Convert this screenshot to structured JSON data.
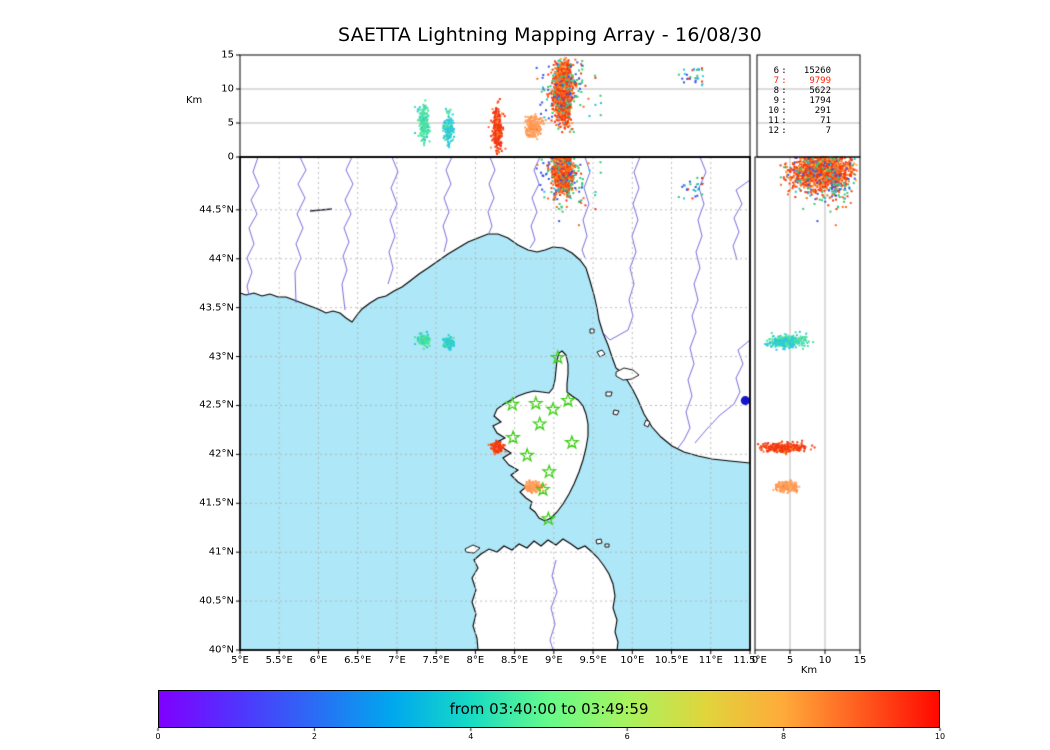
{
  "title": "SAETTA Lightning Mapping Array - 16/08/30",
  "axes": {
    "altitude_left": {
      "label": "Km",
      "tick_values": [
        0,
        5,
        10,
        15
      ],
      "range": [
        0,
        15
      ]
    },
    "altitude_bottom": {
      "label": "Km",
      "tick_values": [
        0,
        5,
        10,
        15
      ],
      "range": [
        0,
        15
      ]
    },
    "longitude": {
      "tick_labels": [
        "5°E",
        "5.5°E",
        "6°E",
        "6.5°E",
        "7°E",
        "7.5°E",
        "8°E",
        "8.5°E",
        "9°E",
        "9.5°E",
        "10°E",
        "10.5°E",
        "11°E",
        "11.5°E"
      ],
      "tick_values": [
        5,
        5.5,
        6,
        6.5,
        7,
        7.5,
        8,
        8.5,
        9,
        9.5,
        10,
        10.5,
        11,
        11.5
      ]
    },
    "latitude": {
      "tick_labels": [
        "44.5°N",
        "44°N",
        "43.5°N",
        "43°N",
        "42.5°N",
        "42°N",
        "41.5°N",
        "41°N",
        "40.5°N",
        "40°N"
      ],
      "tick_values": [
        44.5,
        44,
        43.5,
        43,
        42.5,
        42,
        41.5,
        41,
        40.5,
        40
      ]
    }
  },
  "stats_panel": {
    "rows": [
      {
        "label": "6",
        "value": "15260",
        "color": "#000000"
      },
      {
        "label": "7",
        "value": "9799",
        "color": "#ff2000"
      },
      {
        "label": "8",
        "value": "5622",
        "color": "#000000"
      },
      {
        "label": "9",
        "value": "1794",
        "color": "#000000"
      },
      {
        "label": "10",
        "value": "291",
        "color": "#000000"
      },
      {
        "label": "11",
        "value": "71",
        "color": "#000000"
      },
      {
        "label": "12",
        "value": "7",
        "color": "#000000"
      }
    ]
  },
  "colorbar": {
    "label": "from 03:40:00 to 03:49:59",
    "tick_labels": [
      "0",
      "2",
      "4",
      "6",
      "8",
      "10"
    ],
    "range": [
      0,
      10
    ],
    "stops": [
      "#8000ff",
      "#5233fd",
      "#2a6cf5",
      "#00a8ee",
      "#17dbc4",
      "#66fb8a",
      "#a8f35f",
      "#e0d53c",
      "#ffab3a",
      "#ff5b1f",
      "#ff0800"
    ]
  },
  "chart_data": {
    "type": "scatter",
    "title": "SAETTA Lightning Mapping Array - 16/08/30",
    "time_window": "from 03:40:00 to 03:49:59",
    "lon_range": [
      5,
      11.5
    ],
    "lat_range": [
      40,
      45.04
    ],
    "alt_range_km": [
      0,
      15
    ],
    "sea_color": "#aee7f7",
    "land_color": "#ffffff",
    "station_color": "#3fcf17",
    "stations": [
      {
        "lon": 9.05,
        "lat": 42.99
      },
      {
        "lon": 8.47,
        "lat": 42.51
      },
      {
        "lon": 8.77,
        "lat": 42.52
      },
      {
        "lon": 8.99,
        "lat": 42.46
      },
      {
        "lon": 9.18,
        "lat": 42.55
      },
      {
        "lon": 8.82,
        "lat": 42.31
      },
      {
        "lon": 9.23,
        "lat": 42.12
      },
      {
        "lon": 8.48,
        "lat": 42.17
      },
      {
        "lon": 8.66,
        "lat": 41.99
      },
      {
        "lon": 8.94,
        "lat": 41.82
      },
      {
        "lon": 8.86,
        "lat": 41.64
      },
      {
        "lon": 8.93,
        "lat": 41.34
      }
    ],
    "clusters": [
      {
        "name": "main-storm-north-of-corsica",
        "count": 1400,
        "lon_mean": 9.12,
        "lon_sd": 0.055,
        "lat_mean": 44.9,
        "lat_sd": 0.1,
        "alt_mean": 9.5,
        "alt_sd": 2.2,
        "alt_range": [
          3.5,
          14.6
        ],
        "colors": [
          [
            "#f4380f",
            45
          ],
          [
            "#fd6a1e",
            25
          ],
          [
            "#ff9130",
            15
          ],
          [
            "#ffb347",
            5
          ],
          [
            "#3a52e8",
            4
          ],
          [
            "#37c96e",
            3
          ],
          [
            "#23c3d6",
            3
          ]
        ]
      },
      {
        "name": "storm-fringe",
        "count": 130,
        "lon_mean": 9.15,
        "lon_sd": 0.18,
        "lat_mean": 44.8,
        "lat_sd": 0.18,
        "alt_mean": 10,
        "alt_sd": 2.5,
        "alt_range": [
          1,
          14.5
        ],
        "colors": [
          [
            "#3a52e8",
            30
          ],
          [
            "#37c96e",
            25
          ],
          [
            "#23c3d6",
            20
          ],
          [
            "#fd6a1e",
            15
          ],
          [
            "#f4380f",
            10
          ]
        ]
      },
      {
        "name": "green-cell-west",
        "count": 170,
        "lon_mean": 7.34,
        "lon_sd": 0.035,
        "lat_mean": 43.17,
        "lat_sd": 0.028,
        "alt_mean": 5.0,
        "alt_sd": 1.4,
        "alt_range": [
          1.5,
          8.5
        ],
        "colors": [
          [
            "#4fe39b",
            85
          ],
          [
            "#2cc9dd",
            15
          ]
        ]
      },
      {
        "name": "cyan-cell-west",
        "count": 150,
        "lon_mean": 7.66,
        "lon_sd": 0.03,
        "lat_mean": 43.14,
        "lat_sd": 0.025,
        "alt_mean": 4.0,
        "alt_sd": 1.2,
        "alt_range": [
          1.2,
          7.2
        ],
        "colors": [
          [
            "#2cc9dd",
            80
          ],
          [
            "#4fe39b",
            20
          ]
        ]
      },
      {
        "name": "red-cell-west-corsica",
        "count": 280,
        "lon_mean": 8.28,
        "lon_sd": 0.028,
        "lat_mean": 42.07,
        "lat_sd": 0.024,
        "alt_mean": 4.0,
        "alt_sd": 1.6,
        "alt_range": [
          0.4,
          8.8
        ],
        "colors": [
          [
            "#f23714",
            80
          ],
          [
            "#ff6a2a",
            12
          ],
          [
            "#fd9029",
            8
          ]
        ]
      },
      {
        "name": "orange-cell-south-corsica",
        "count": 230,
        "lon_mean": 8.74,
        "lon_sd": 0.05,
        "lat_mean": 41.67,
        "lat_sd": 0.022,
        "alt_mean": 4.4,
        "alt_sd": 0.8,
        "alt_range": [
          2.6,
          6.6
        ],
        "colors": [
          [
            "#ff9a55",
            70
          ],
          [
            "#ffae6e",
            20
          ],
          [
            "#fd7e35",
            10
          ]
        ]
      },
      {
        "name": "sparse-northeast",
        "count": 28,
        "lon_mean": 10.8,
        "lon_sd": 0.09,
        "lat_mean": 44.73,
        "lat_sd": 0.06,
        "alt_mean": 12,
        "alt_sd": 0.8,
        "alt_range": [
          10.5,
          13.5
        ],
        "colors": [
          [
            "#3a52e8",
            50
          ],
          [
            "#2cc9dd",
            25
          ],
          [
            "#f4380f",
            15
          ],
          [
            "#37c96e",
            10
          ]
        ]
      },
      {
        "name": "lone-blue-dot-east",
        "fixed": true,
        "lon": 11.44,
        "lat": 42.55,
        "radius": 4.5,
        "color": "#1414cc",
        "panels": [
          "map"
        ]
      }
    ]
  }
}
